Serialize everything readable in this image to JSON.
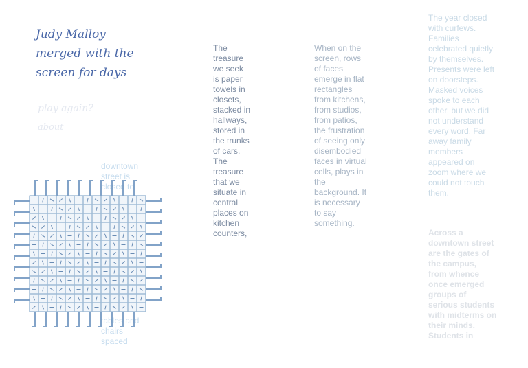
{
  "title_lines": [
    "Judy Malloy",
    "merged with the",
    "screen for days"
  ],
  "links": [
    "play again?",
    "about"
  ],
  "overlay_top": "downtown street is closed to",
  "overlay_bottom": "tables and chairs spaced",
  "column_1": "The treasure we seek is paper towels in closets, stacked in hallways, stored in the trunks of cars. The treasure that we situate in central places on kitchen counters,",
  "column_2": "When on the screen, rows of faces emerge in flat rectangles from kitchens, from studios, from patios, the frustration of seeing only disembodied faces in virtual cells, plays in the background. It is necessary to say something.",
  "column_3": "The year closed with curfews. Families celebrated quietly by themselves. Presents were left on doorsteps. Masked voices spoke to each other, but we did not understand every word. Far away family members appeared on zoom where we could not touch them.",
  "column_3_next": "Across a downtown street are the gates of the campus, from whence once emerged groups of serious students with midterms on their minds. Students in"
}
